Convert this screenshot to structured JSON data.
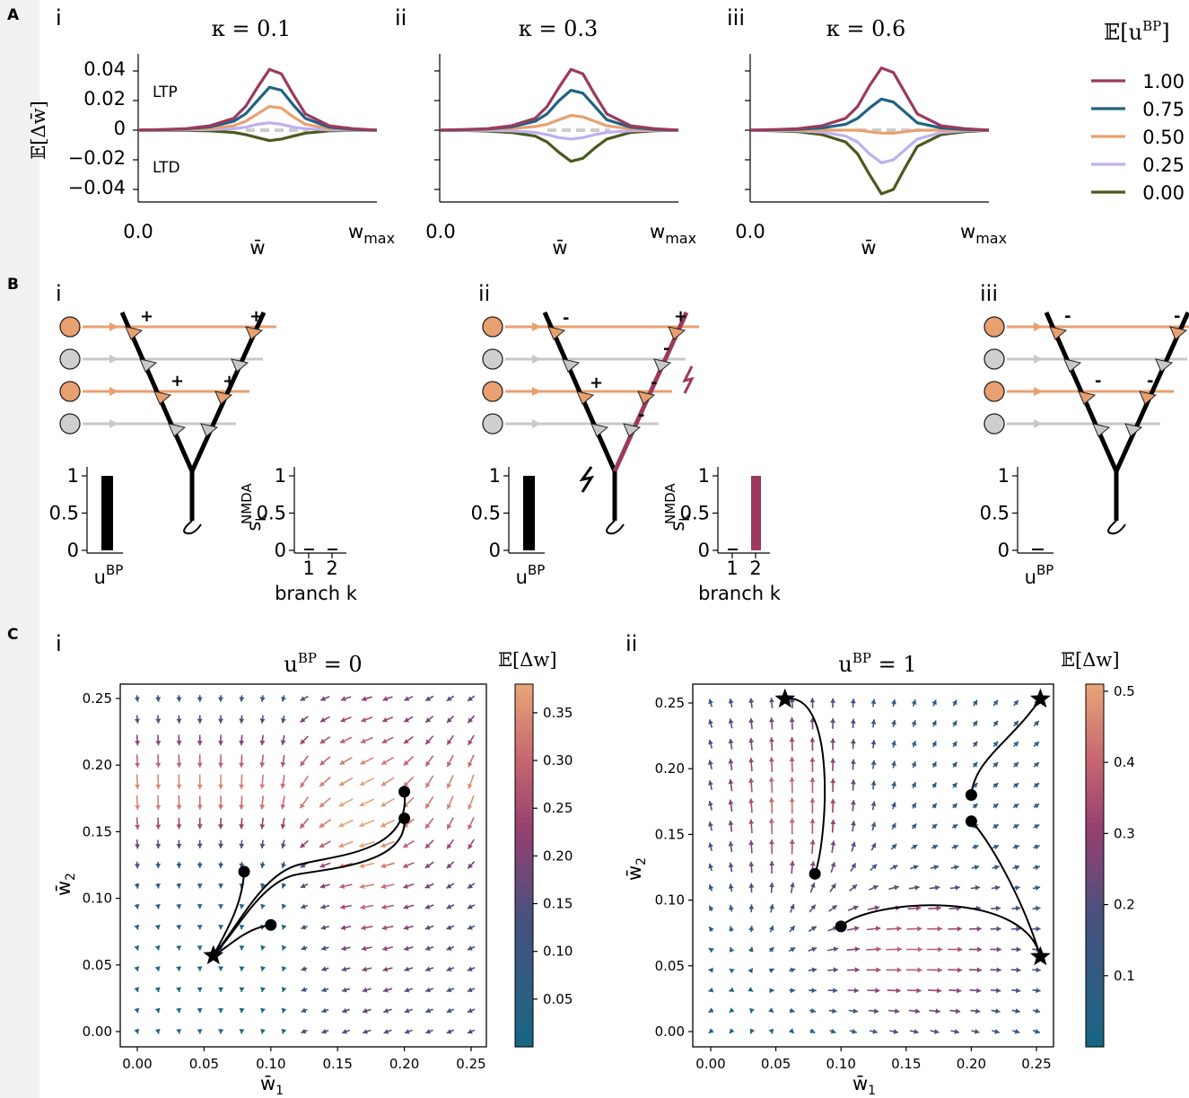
{
  "figure": {
    "panel_labels": [
      "A",
      "B",
      "C"
    ],
    "roman": [
      "i",
      "ii",
      "iii"
    ]
  },
  "panel_a": {
    "y_label": "𝔼[Δw̄]",
    "x_label": "w̄",
    "x_start": "0.0",
    "x_end": "w",
    "x_end_sub": "max",
    "ltp": "LTP",
    "ltd": "LTD",
    "legend_title": "𝔼[u",
    "legend_title_sup": "BP",
    "legend_title_close": "]",
    "yticks": [
      "0.04",
      "0.02",
      "0",
      "−0.02",
      "−0.04"
    ]
  },
  "panel_b": {
    "ubp": "u",
    "ubp_sup": "BP",
    "snmda": "s",
    "snmda_sub": "k",
    "snmda_sup": "NMDA",
    "branch_label": "branch k",
    "yticks": [
      "1",
      "0.5",
      "0"
    ],
    "xticks": [
      "1",
      "2"
    ],
    "signs": {
      "i": [
        "+",
        "+",
        "+",
        "+"
      ],
      "ii": [
        "-",
        "+",
        "-",
        "+",
        "-",
        "-"
      ],
      "iii": [
        "-",
        "-",
        "-",
        "-"
      ]
    }
  },
  "panel_c": {
    "xlabel": "w̄",
    "xlabel_sub": "1",
    "ylabel": "w̄",
    "ylabel_sub": "2",
    "cbar_label": "𝔼[Δw]",
    "titles": [
      {
        "u": "u",
        "sup": "BP",
        "eq": " = 0"
      },
      {
        "u": "u",
        "sup": "BP",
        "eq": " = 1"
      }
    ],
    "ticks": [
      "0.00",
      "0.05",
      "0.10",
      "0.15",
      "0.20",
      "0.25"
    ],
    "cbar_ticks_i": [
      "0.35",
      "0.30",
      "0.25",
      "0.20",
      "0.15",
      "0.10",
      "0.05"
    ],
    "cbar_ticks_ii": [
      "0.5",
      "0.4",
      "0.3",
      "0.2",
      "0.1"
    ]
  },
  "chart_data": [
    {
      "type": "line",
      "title": "κ = 0.1",
      "panel": "A-i",
      "xlabel": "w̄",
      "ylabel": "𝔼[Δw̄]",
      "ylim": [
        -0.05,
        0.05
      ],
      "x": [
        0.0,
        0.1,
        0.2,
        0.3,
        0.4,
        0.45,
        0.5,
        0.55,
        0.6,
        0.65,
        0.7,
        0.8,
        0.9,
        1.0
      ],
      "series": [
        {
          "name": "1.00",
          "color": "#9b3a5e",
          "values": [
            0,
            0.0004,
            0.001,
            0.003,
            0.008,
            0.016,
            0.029,
            0.041,
            0.038,
            0.024,
            0.011,
            0.003,
            0.001,
            0
          ]
        },
        {
          "name": "0.75",
          "color": "#1f6384",
          "values": [
            0,
            0.0003,
            0.0008,
            0.0022,
            0.006,
            0.011,
            0.02,
            0.029,
            0.027,
            0.017,
            0.008,
            0.002,
            0.0005,
            0
          ]
        },
        {
          "name": "0.50",
          "color": "#e8a070",
          "values": [
            0,
            0.0002,
            0.0005,
            0.0012,
            0.003,
            0.006,
            0.011,
            0.016,
            0.015,
            0.009,
            0.004,
            0.001,
            0.0003,
            0
          ]
        },
        {
          "name": "0.25",
          "color": "#bfb0f0",
          "values": [
            0,
            0.0001,
            0.0002,
            0.0004,
            0.001,
            0.002,
            0.004,
            0.005,
            0.004,
            0.002,
            0.001,
            0.0002,
            0,
            0
          ]
        },
        {
          "name": "0.00",
          "color": "#4a5a1e",
          "values": [
            0,
            -0.0001,
            -0.0002,
            -0.0005,
            -0.0015,
            -0.003,
            -0.005,
            -0.007,
            -0.006,
            -0.004,
            -0.002,
            -0.0005,
            -0.0001,
            0
          ]
        }
      ]
    },
    {
      "type": "line",
      "title": "κ = 0.3",
      "panel": "A-ii",
      "xlabel": "w̄",
      "ylabel": "𝔼[Δw̄]",
      "ylim": [
        -0.05,
        0.05
      ],
      "x": [
        0.0,
        0.1,
        0.2,
        0.3,
        0.4,
        0.45,
        0.5,
        0.55,
        0.6,
        0.65,
        0.7,
        0.8,
        0.9,
        1.0
      ],
      "series": [
        {
          "name": "1.00",
          "color": "#9b3a5e",
          "values": [
            0,
            0.0004,
            0.001,
            0.003,
            0.008,
            0.016,
            0.029,
            0.041,
            0.038,
            0.024,
            0.011,
            0.003,
            0.001,
            0
          ]
        },
        {
          "name": "0.75",
          "color": "#1f6384",
          "values": [
            0,
            0.0003,
            0.0008,
            0.0022,
            0.006,
            0.011,
            0.02,
            0.027,
            0.025,
            0.016,
            0.007,
            0.002,
            0.0005,
            0
          ]
        },
        {
          "name": "0.50",
          "color": "#e8a070",
          "values": [
            0,
            0.0002,
            0.0004,
            0.001,
            0.0025,
            0.004,
            0.007,
            0.01,
            0.009,
            0.006,
            0.003,
            0.0008,
            0.0002,
            0
          ]
        },
        {
          "name": "0.25",
          "color": "#bfb0f0",
          "values": [
            0,
            -0.0001,
            -0.0002,
            -0.0005,
            -0.0015,
            -0.003,
            -0.005,
            -0.006,
            -0.005,
            -0.003,
            -0.0015,
            -0.0004,
            -0.0001,
            0
          ]
        },
        {
          "name": "0.00",
          "color": "#4a5a1e",
          "values": [
            0,
            -0.0002,
            -0.0006,
            -0.0016,
            -0.004,
            -0.008,
            -0.015,
            -0.021,
            -0.019,
            -0.012,
            -0.006,
            -0.0015,
            -0.0004,
            0
          ]
        }
      ]
    },
    {
      "type": "line",
      "title": "κ = 0.6",
      "panel": "A-iii",
      "xlabel": "w̄",
      "ylabel": "𝔼[Δw̄]",
      "ylim": [
        -0.05,
        0.05
      ],
      "x": [
        0.0,
        0.1,
        0.2,
        0.3,
        0.4,
        0.45,
        0.5,
        0.55,
        0.6,
        0.65,
        0.7,
        0.8,
        0.9,
        1.0
      ],
      "series": [
        {
          "name": "1.00",
          "color": "#9b3a5e",
          "values": [
            0,
            0.0004,
            0.001,
            0.003,
            0.008,
            0.016,
            0.03,
            0.042,
            0.039,
            0.025,
            0.011,
            0.003,
            0.001,
            0
          ]
        },
        {
          "name": "0.75",
          "color": "#1f6384",
          "values": [
            0,
            0.0002,
            0.0006,
            0.0015,
            0.004,
            0.008,
            0.015,
            0.021,
            0.019,
            0.012,
            0.005,
            0.0015,
            0.0004,
            0
          ]
        },
        {
          "name": "0.50",
          "color": "#e8a070",
          "values": [
            0,
            0,
            0,
            0,
            0,
            0,
            -0.001,
            -0.002,
            -0.002,
            -0.001,
            0,
            0,
            0,
            0
          ]
        },
        {
          "name": "0.25",
          "color": "#bfb0f0",
          "values": [
            0,
            -0.0002,
            -0.0005,
            -0.0013,
            -0.004,
            -0.008,
            -0.016,
            -0.022,
            -0.02,
            -0.013,
            -0.006,
            -0.0015,
            -0.0004,
            0
          ]
        },
        {
          "name": "0.00",
          "color": "#4a5a1e",
          "values": [
            0,
            -0.0004,
            -0.001,
            -0.003,
            -0.008,
            -0.016,
            -0.03,
            -0.043,
            -0.04,
            -0.025,
            -0.011,
            -0.003,
            -0.001,
            0
          ]
        }
      ]
    },
    {
      "type": "bar",
      "panel": "B-i-ubp",
      "categories": [
        "u^BP"
      ],
      "values": [
        1.0
      ],
      "ylim": [
        0,
        1
      ]
    },
    {
      "type": "bar",
      "panel": "B-i-nmda",
      "categories": [
        "1",
        "2"
      ],
      "values": [
        0.0,
        0.0
      ],
      "xlabel": "branch k",
      "ylim": [
        0,
        1
      ]
    },
    {
      "type": "bar",
      "panel": "B-ii-ubp",
      "categories": [
        "u^BP"
      ],
      "values": [
        1.0
      ],
      "ylim": [
        0,
        1
      ]
    },
    {
      "type": "bar",
      "panel": "B-ii-nmda",
      "categories": [
        "1",
        "2"
      ],
      "values": [
        0.0,
        1.0
      ],
      "xlabel": "branch k",
      "ylim": [
        0,
        1
      ]
    },
    {
      "type": "bar",
      "panel": "B-iii-ubp",
      "categories": [
        "u^BP"
      ],
      "values": [
        0.0
      ],
      "ylim": [
        0,
        1
      ]
    },
    {
      "type": "scatter",
      "panel": "C-i",
      "title": "u^BP = 0",
      "xlabel": "w̄1",
      "ylabel": "w̄2",
      "xlim": [
        0,
        0.25
      ],
      "ylim": [
        0,
        0.25
      ],
      "clim": [
        0,
        0.38
      ],
      "fixed_points": [
        [
          0.057,
          0.057
        ]
      ],
      "start_points": [
        [
          0.08,
          0.12
        ],
        [
          0.1,
          0.08
        ],
        [
          0.2,
          0.18
        ],
        [
          0.2,
          0.16
        ]
      ]
    },
    {
      "type": "scatter",
      "panel": "C-ii",
      "title": "u^BP = 1",
      "xlabel": "w̄1",
      "ylabel": "w̄2",
      "xlim": [
        0,
        0.25
      ],
      "ylim": [
        0,
        0.25
      ],
      "clim": [
        0,
        0.5
      ],
      "fixed_points": [
        [
          0.057,
          0.253
        ],
        [
          0.253,
          0.253
        ],
        [
          0.253,
          0.057
        ]
      ],
      "start_points": [
        [
          0.08,
          0.12
        ],
        [
          0.1,
          0.08
        ],
        [
          0.2,
          0.18
        ],
        [
          0.2,
          0.16
        ]
      ]
    }
  ]
}
